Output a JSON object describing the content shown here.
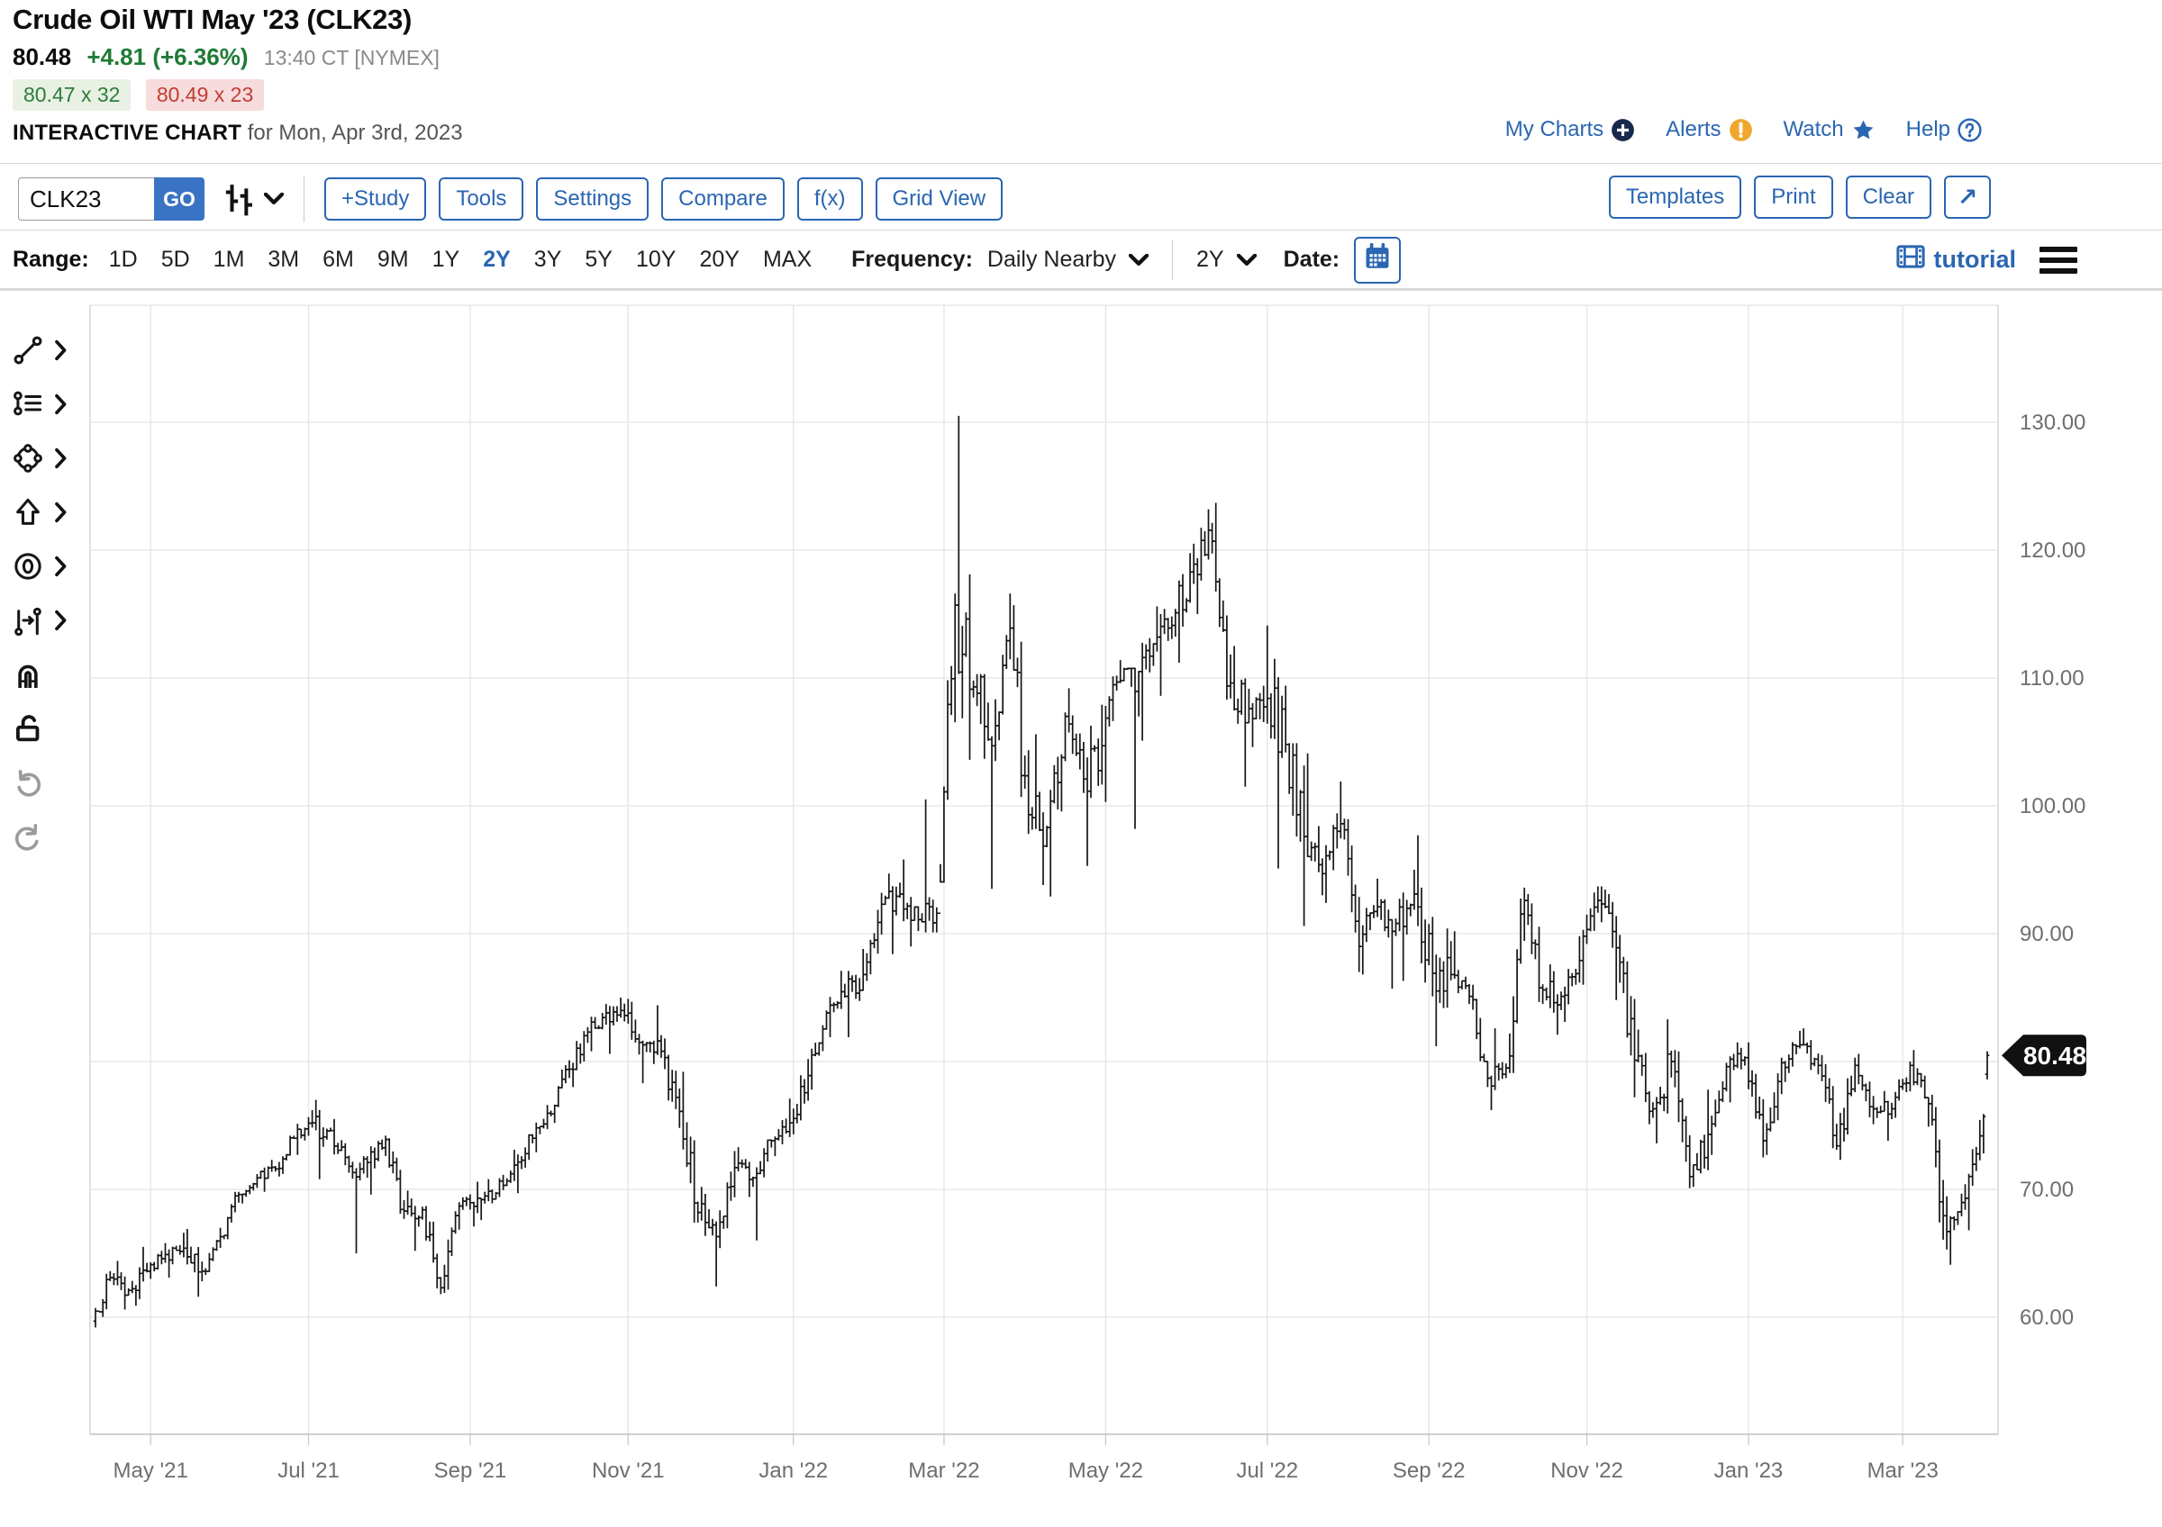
{
  "header": {
    "title": "Crude Oil WTI May '23 (CLK23)",
    "last": "80.48",
    "change": "+4.81 (+6.36%)",
    "time": "13:40 CT [NYMEX]",
    "bid": "80.47 x 32",
    "ask": "80.49 x 23",
    "page_label": "INTERACTIVE CHART",
    "page_date": "for Mon, Apr 3rd, 2023",
    "links": [
      {
        "name": "my-charts",
        "label": "My Charts",
        "icon": "plus-circle-icon"
      },
      {
        "name": "alerts",
        "label": "Alerts",
        "icon": "alert-circle-icon"
      },
      {
        "name": "watch",
        "label": "Watch",
        "icon": "star-icon"
      },
      {
        "name": "help",
        "label": "Help",
        "icon": "question-circle-icon"
      }
    ]
  },
  "toolbar": {
    "symbol_value": "CLK23",
    "go_label": "GO",
    "chart_type_icon": "ohlc-bars-icon",
    "left_buttons": [
      {
        "name": "study-button",
        "label": "+Study"
      },
      {
        "name": "tools-button",
        "label": "Tools"
      },
      {
        "name": "settings-button",
        "label": "Settings"
      },
      {
        "name": "compare-button",
        "label": "Compare"
      },
      {
        "name": "fx-button",
        "label": "f(x)"
      },
      {
        "name": "grid-view-button",
        "label": "Grid View"
      }
    ],
    "right_buttons": [
      {
        "name": "templates-button",
        "label": "Templates"
      },
      {
        "name": "print-button",
        "label": "Print"
      },
      {
        "name": "clear-button",
        "label": "Clear"
      },
      {
        "name": "expand-button",
        "label": "↗"
      }
    ]
  },
  "range_row": {
    "range_label": "Range:",
    "options": [
      "1D",
      "5D",
      "1M",
      "3M",
      "6M",
      "9M",
      "1Y",
      "2Y",
      "3Y",
      "5Y",
      "10Y",
      "20Y",
      "MAX"
    ],
    "active_option": "2Y",
    "frequency_label": "Frequency:",
    "frequency_value": "Daily Nearby",
    "zoom_value": "2Y",
    "date_label": "Date:",
    "tutorial_label": "tutorial"
  },
  "sidebar_tools": [
    {
      "name": "trendline-tool",
      "icon": "trendline-icon",
      "chevron": true,
      "disabled": false
    },
    {
      "name": "annotation-tool",
      "icon": "annotation-icon",
      "chevron": true,
      "disabled": false
    },
    {
      "name": "shapes-tool",
      "icon": "shapes-icon",
      "chevron": true,
      "disabled": false
    },
    {
      "name": "arrow-tool",
      "icon": "arrow-up-icon",
      "chevron": true,
      "disabled": false
    },
    {
      "name": "circle-marker-tool",
      "icon": "circle-zero-icon",
      "chevron": true,
      "disabled": false
    },
    {
      "name": "measure-tool",
      "icon": "measure-icon",
      "chevron": true,
      "disabled": false
    },
    {
      "name": "magnet-tool",
      "icon": "magnet-icon",
      "chevron": false,
      "disabled": false
    },
    {
      "name": "unlock-tool",
      "icon": "unlock-icon",
      "chevron": false,
      "disabled": false
    },
    {
      "name": "undo-button",
      "icon": "undo-icon",
      "chevron": false,
      "disabled": true
    },
    {
      "name": "redo-button",
      "icon": "redo-icon",
      "chevron": false,
      "disabled": true
    }
  ],
  "colors": {
    "accent_blue": "#2a66b2",
    "go_blue": "#3a72c4",
    "up_green": "#1f7b36",
    "bid_badge_bg": "#e8f1e4",
    "bid_badge_text": "#2f7d3a",
    "ask_badge_bg": "#f6dcdc",
    "ask_badge_text": "#c33d32",
    "alert_amber": "#efa82d",
    "navy_icon": "#17294d",
    "grid_gray": "#e4e4e4",
    "axis_text_gray": "#6e6e6e",
    "bar_black": "#161616",
    "tag_black": "#111111"
  },
  "chart_data": {
    "type": "ohlc",
    "symbol": "CLK23",
    "title": "Crude Oil WTI May '23 (CLK23) — Daily Nearby, 2Y",
    "last_price": 80.48,
    "price_tag_label": "80.48",
    "ylabel": "",
    "xlabel": "",
    "y_axis": {
      "min_visible": 51,
      "max_visible": 139,
      "tick_start": 60,
      "tick_end": 130,
      "tick_step": 10,
      "tick_labels": [
        "130.00",
        "120.00",
        "110.00",
        "100.00",
        "90.00",
        "80.00",
        "70.00",
        "60.00"
      ]
    },
    "x_labels": [
      {
        "label": "May '21",
        "day": 15
      },
      {
        "label": "Jul '21",
        "day": 58
      },
      {
        "label": "Sep '21",
        "day": 102
      },
      {
        "label": "Nov '21",
        "day": 145
      },
      {
        "label": "Jan '22",
        "day": 190
      },
      {
        "label": "Mar '22",
        "day": 231
      },
      {
        "label": "May '22",
        "day": 275
      },
      {
        "label": "Jul '22",
        "day": 319
      },
      {
        "label": "Sep '22",
        "day": 363
      },
      {
        "label": "Nov '22",
        "day": 406
      },
      {
        "label": "Jan '23",
        "day": 450
      },
      {
        "label": "Mar '23",
        "day": 492
      }
    ],
    "days_per_week": 5,
    "weekly_ohlc": [
      [
        59.7,
        63.6,
        59.2,
        63.1
      ],
      [
        63.1,
        64.4,
        60.6,
        62.1
      ],
      [
        62.1,
        65.5,
        60.9,
        63.6
      ],
      [
        63.6,
        65.8,
        63.0,
        64.9
      ],
      [
        64.9,
        66.6,
        63.1,
        65.4
      ],
      [
        65.4,
        66.9,
        61.6,
        63.6
      ],
      [
        63.6,
        67.0,
        63.3,
        66.3
      ],
      [
        66.3,
        69.8,
        66.1,
        69.6
      ],
      [
        69.6,
        71.2,
        68.9,
        70.9
      ],
      [
        70.9,
        72.3,
        69.8,
        71.6
      ],
      [
        71.6,
        74.2,
        71.0,
        74.0
      ],
      [
        74.0,
        76.2,
        72.7,
        75.2
      ],
      [
        75.2,
        77.0,
        70.8,
        74.6
      ],
      [
        74.6,
        75.5,
        71.3,
        71.8
      ],
      [
        71.8,
        72.6,
        65.0,
        72.1
      ],
      [
        72.1,
        74.2,
        69.6,
        73.9
      ],
      [
        73.9,
        74.0,
        67.7,
        68.3
      ],
      [
        68.3,
        69.9,
        65.2,
        68.4
      ],
      [
        68.4,
        68.7,
        61.8,
        62.3
      ],
      [
        62.3,
        69.0,
        61.9,
        68.7
      ],
      [
        68.7,
        70.6,
        67.1,
        69.3
      ],
      [
        69.3,
        70.8,
        67.6,
        69.7
      ],
      [
        69.7,
        73.1,
        69.4,
        71.9
      ],
      [
        71.9,
        74.3,
        69.7,
        74.0
      ],
      [
        74.0,
        76.6,
        72.9,
        75.9
      ],
      [
        75.9,
        80.1,
        75.2,
        79.4
      ],
      [
        79.4,
        82.7,
        78.0,
        82.3
      ],
      [
        82.3,
        84.5,
        80.8,
        83.8
      ],
      [
        83.8,
        85.0,
        80.6,
        83.6
      ],
      [
        83.6,
        84.9,
        78.3,
        81.3
      ],
      [
        81.3,
        84.4,
        79.8,
        80.8
      ],
      [
        80.8,
        81.8,
        74.8,
        76.1
      ],
      [
        76.1,
        79.2,
        67.4,
        68.2
      ],
      [
        68.2,
        70.2,
        62.4,
        66.3
      ],
      [
        66.3,
        73.0,
        65.4,
        71.7
      ],
      [
        71.7,
        73.3,
        69.4,
        70.9
      ],
      [
        70.9,
        73.9,
        66.0,
        73.8
      ],
      [
        73.8,
        77.1,
        72.6,
        75.2
      ],
      [
        75.2,
        80.2,
        74.3,
        78.9
      ],
      [
        78.9,
        84.0,
        77.8,
        83.8
      ],
      [
        83.8,
        87.1,
        81.9,
        85.1
      ],
      [
        85.1,
        88.8,
        81.9,
        86.8
      ],
      [
        86.8,
        93.2,
        86.3,
        92.3
      ],
      [
        92.3,
        94.7,
        88.4,
        93.1
      ],
      [
        93.1,
        95.8,
        89.0,
        91.1
      ],
      [
        91.1,
        100.5,
        90.1,
        91.6
      ],
      [
        91.6,
        116.6,
        94.0,
        115.7
      ],
      [
        115.7,
        130.5,
        103.6,
        109.3
      ],
      [
        109.3,
        110.3,
        93.5,
        104.7
      ],
      [
        104.7,
        116.6,
        103.5,
        113.9
      ],
      [
        113.9,
        115.7,
        97.8,
        99.3
      ],
      [
        99.3,
        105.6,
        93.8,
        98.3
      ],
      [
        98.3,
        107.3,
        92.9,
        107.0
      ],
      [
        107.0,
        109.2,
        101.0,
        102.1
      ],
      [
        102.1,
        107.9,
        95.3,
        104.7
      ],
      [
        104.7,
        111.4,
        100.3,
        109.8
      ],
      [
        109.8,
        110.8,
        98.2,
        110.5
      ],
      [
        110.5,
        115.6,
        105.1,
        113.2
      ],
      [
        113.2,
        115.4,
        108.6,
        115.1
      ],
      [
        115.1,
        120.5,
        111.2,
        118.9
      ],
      [
        118.9,
        123.2,
        115.0,
        120.7
      ],
      [
        120.7,
        123.7,
        108.3,
        109.6
      ],
      [
        109.6,
        112.5,
        101.5,
        107.6
      ],
      [
        107.6,
        114.1,
        104.6,
        108.4
      ],
      [
        108.4,
        111.5,
        95.1,
        104.8
      ],
      [
        104.8,
        104.9,
        90.6,
        97.6
      ],
      [
        97.6,
        104.1,
        93.0,
        94.7
      ],
      [
        94.7,
        101.9,
        92.4,
        98.6
      ],
      [
        98.6,
        99.0,
        87.0,
        89.0
      ],
      [
        89.0,
        94.3,
        86.8,
        92.1
      ],
      [
        92.1,
        92.7,
        85.7,
        90.8
      ],
      [
        90.8,
        95.0,
        86.3,
        93.1
      ],
      [
        93.1,
        97.7,
        85.1,
        86.9
      ],
      [
        86.9,
        90.4,
        81.2,
        86.8
      ],
      [
        86.8,
        90.2,
        84.5,
        85.1
      ],
      [
        85.1,
        86.0,
        78.0,
        78.7
      ],
      [
        78.7,
        82.6,
        76.2,
        79.5
      ],
      [
        79.5,
        93.6,
        79.1,
        92.6
      ],
      [
        92.6,
        93.1,
        84.5,
        85.6
      ],
      [
        85.6,
        87.6,
        82.1,
        85.1
      ],
      [
        85.1,
        89.8,
        83.1,
        87.9
      ],
      [
        87.9,
        93.7,
        86.0,
        92.6
      ],
      [
        92.6,
        93.7,
        84.8,
        88.9
      ],
      [
        88.9,
        89.9,
        77.2,
        80.1
      ],
      [
        80.1,
        82.5,
        75.1,
        76.3
      ],
      [
        76.3,
        83.3,
        73.6,
        80.0
      ],
      [
        80.0,
        80.9,
        70.1,
        71.0
      ],
      [
        71.0,
        77.8,
        70.2,
        74.3
      ],
      [
        74.3,
        79.9,
        72.7,
        79.6
      ],
      [
        79.6,
        81.5,
        76.8,
        80.3
      ],
      [
        80.3,
        81.5,
        72.5,
        73.8
      ],
      [
        73.8,
        80.3,
        72.7,
        79.9
      ],
      [
        79.9,
        82.4,
        78.4,
        81.3
      ],
      [
        81.3,
        82.6,
        79.0,
        79.7
      ],
      [
        79.7,
        80.5,
        73.1,
        73.4
      ],
      [
        73.4,
        80.3,
        72.3,
        79.7
      ],
      [
        79.7,
        80.6,
        75.1,
        76.3
      ],
      [
        76.3,
        77.7,
        73.8,
        76.3
      ],
      [
        76.3,
        80.0,
        75.6,
        79.7
      ],
      [
        79.7,
        80.9,
        74.9,
        76.7
      ],
      [
        76.7,
        77.4,
        65.3,
        66.7
      ],
      [
        66.7,
        70.4,
        64.1,
        69.3
      ],
      [
        69.3,
        75.9,
        66.8,
        75.7
      ]
    ],
    "final_bar": [
      79.0,
      80.8,
      78.6,
      80.48
    ]
  }
}
